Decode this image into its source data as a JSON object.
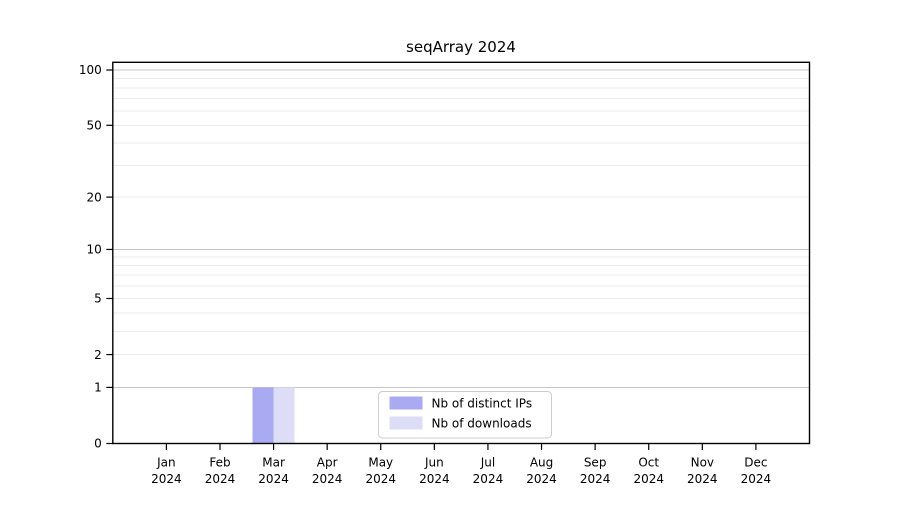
{
  "chart_data": {
    "type": "bar",
    "title": "seqArray 2024",
    "categories": [
      {
        "label": "Jan",
        "sub": "2024"
      },
      {
        "label": "Feb",
        "sub": "2024"
      },
      {
        "label": "Mar",
        "sub": "2024"
      },
      {
        "label": "Apr",
        "sub": "2024"
      },
      {
        "label": "May",
        "sub": "2024"
      },
      {
        "label": "Jun",
        "sub": "2024"
      },
      {
        "label": "Jul",
        "sub": "2024"
      },
      {
        "label": "Aug",
        "sub": "2024"
      },
      {
        "label": "Sep",
        "sub": "2024"
      },
      {
        "label": "Oct",
        "sub": "2024"
      },
      {
        "label": "Nov",
        "sub": "2024"
      },
      {
        "label": "Dec",
        "sub": "2024"
      }
    ],
    "series": [
      {
        "name": "Nb of distinct IPs",
        "color": "#aaaaf2",
        "values": [
          0,
          0,
          1,
          0,
          0,
          0,
          0,
          0,
          0,
          0,
          0,
          0
        ]
      },
      {
        "name": "Nb of downloads",
        "color": "#ddddf7",
        "values": [
          0,
          0,
          1,
          0,
          0,
          0,
          0,
          0,
          0,
          0,
          0,
          0
        ]
      }
    ],
    "y_axis": {
      "scale": "log1p",
      "tick_values": [
        0,
        1,
        2,
        5,
        10,
        20,
        50,
        100
      ],
      "major_gridlines": [
        1,
        10,
        100
      ],
      "minor_gridlines": [
        2,
        3,
        4,
        5,
        6,
        7,
        8,
        9,
        20,
        30,
        40,
        50,
        60,
        70,
        80,
        90
      ],
      "ylim": [
        0,
        100
      ]
    },
    "legend": {
      "entries": [
        "Nb of distinct IPs",
        "Nb of downloads"
      ],
      "position": "bottom-center"
    },
    "colors": {
      "bar_distinct_ips": "#aaaaf2",
      "bar_downloads": "#ddddf7",
      "axis": "#000000",
      "major_grid": "#c6c6c6",
      "minor_grid": "#ececec",
      "legend_border": "#cccccc",
      "text": "#000000",
      "background": "#ffffff"
    }
  }
}
